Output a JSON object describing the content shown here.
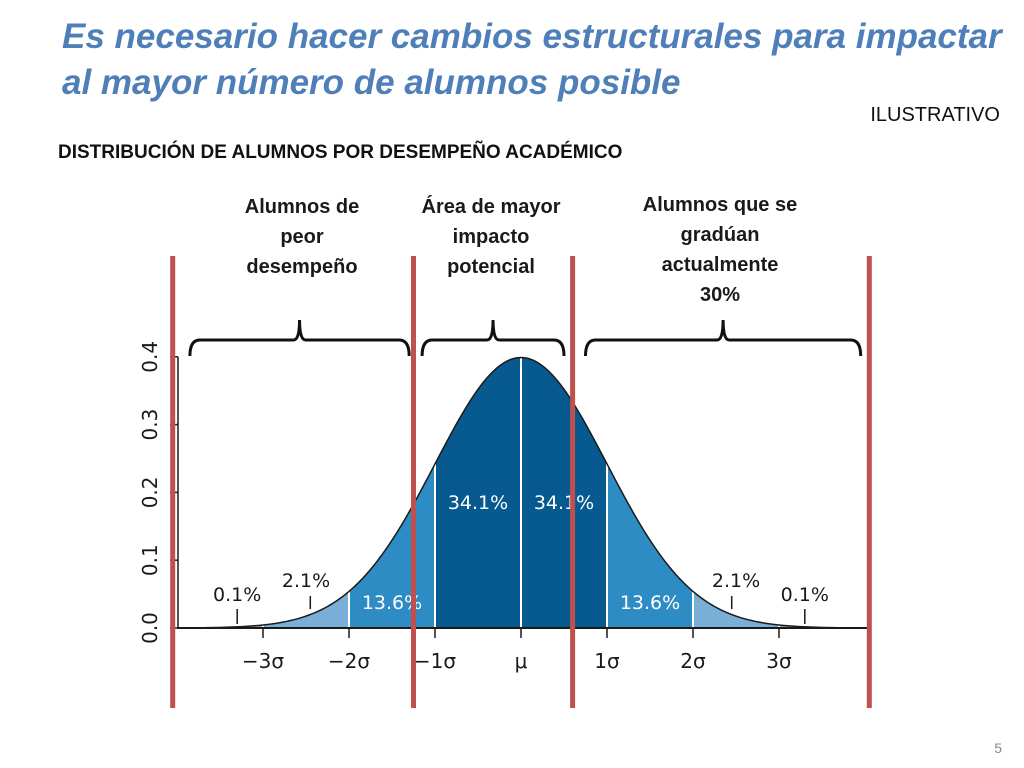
{
  "slide": {
    "title_line1": "Es necesario hacer cambios estructurales para impactar",
    "title_line2": "al mayor número de alumnos posible",
    "tag": "ILUSTRATIVO",
    "subtitle": "DISTRIBUCIÓN DE ALUMNOS POR DESEMPEÑO ACADÉMICO",
    "page_number": "5"
  },
  "groups": {
    "low": {
      "line1": "Alumnos de",
      "line2": "peor",
      "line3": "desempeño"
    },
    "mid": {
      "line1": "Área de mayor",
      "line2": "impacto",
      "line3": "potencial"
    },
    "high": {
      "line1": "Alumnos que se",
      "line2": "gradúan",
      "line3": "actualmente",
      "line4": "30%"
    }
  },
  "colors": {
    "title": "#4f7fb8",
    "band_inner": "#065a8f",
    "band_middle": "#2e8cc4",
    "band_outer": "#79aed6",
    "divider": "#c0504d"
  },
  "chart_data": {
    "type": "area",
    "distribution": "normal",
    "x_range_sigma": [
      -4,
      4
    ],
    "ylim": [
      0,
      0.4
    ],
    "yticks": [
      0.0,
      0.1,
      0.2,
      0.3,
      0.4
    ],
    "ytick_labels": [
      "0.0",
      "0.1",
      "0.2",
      "0.3",
      "0.4"
    ],
    "xticks": [
      -3,
      -2,
      -1,
      0,
      1,
      2,
      3
    ],
    "xtick_labels": [
      "−3σ",
      "−2σ",
      "−1σ",
      "μ",
      "1σ",
      "2σ",
      "3σ"
    ],
    "bands": [
      {
        "from": -1,
        "to": 0,
        "percent": "34.1%",
        "shade": "inner"
      },
      {
        "from": 0,
        "to": 1,
        "percent": "34.1%",
        "shade": "inner"
      },
      {
        "from": -2,
        "to": -1,
        "percent": "13.6%",
        "shade": "middle"
      },
      {
        "from": 1,
        "to": 2,
        "percent": "13.6%",
        "shade": "middle"
      },
      {
        "from": -3,
        "to": -2,
        "percent": "2.1%",
        "shade": "outer"
      },
      {
        "from": 2,
        "to": 3,
        "percent": "2.1%",
        "shade": "outer"
      },
      {
        "from": -4,
        "to": -3,
        "percent": "0.1%",
        "shade": "outer"
      },
      {
        "from": 3,
        "to": 4,
        "percent": "0.1%",
        "shade": "outer"
      }
    ],
    "divider_lines_sigma": [
      -4.05,
      -1.25,
      0.6,
      4.05
    ],
    "bracket_ranges_sigma": [
      [
        -3.85,
        -1.3
      ],
      [
        -1.15,
        0.5
      ],
      [
        0.75,
        3.95
      ]
    ]
  }
}
